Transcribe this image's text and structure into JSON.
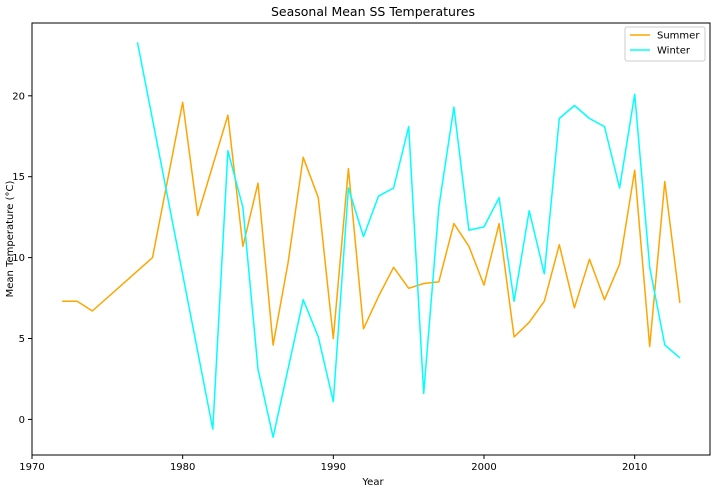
{
  "chart_data": {
    "type": "line",
    "title": "Seasonal Mean SS Temperatures",
    "xlabel": "Year",
    "ylabel": "Mean Temperature (°C)",
    "xlim": [
      1970,
      2015
    ],
    "ylim": [
      -2.2,
      24.5
    ],
    "xticks": [
      1970,
      1980,
      1990,
      2000,
      2010
    ],
    "yticks": [
      0,
      5,
      10,
      15,
      20
    ],
    "grid": false,
    "legend_position": "top-right",
    "series": [
      {
        "name": "Summer",
        "color": "#FFA500",
        "x": [
          1972,
          1973,
          1974,
          1978,
          1980,
          1981,
          1983,
          1984,
          1985,
          1986,
          1987,
          1988,
          1989,
          1990,
          1991,
          1992,
          1993,
          1994,
          1995,
          1996,
          1997,
          1998,
          1999,
          2000,
          2001,
          2002,
          2003,
          2004,
          2005,
          2006,
          2007,
          2008,
          2009,
          2010,
          2011,
          2012,
          2013
        ],
        "y": [
          7.3,
          7.3,
          6.7,
          10.0,
          19.6,
          12.6,
          18.8,
          10.7,
          14.6,
          4.6,
          9.7,
          16.2,
          13.7,
          5.0,
          15.5,
          5.6,
          7.6,
          9.4,
          8.1,
          8.4,
          8.5,
          12.1,
          10.7,
          8.3,
          12.1,
          5.1,
          6.0,
          7.3,
          10.8,
          6.9,
          9.9,
          7.4,
          9.6,
          15.4,
          4.5,
          14.7,
          7.2
        ]
      },
      {
        "name": "Winter",
        "color": "#00FFFF",
        "x": [
          1977,
          1982,
          1983,
          1984,
          1985,
          1986,
          1988,
          1989,
          1990,
          1991,
          1992,
          1993,
          1994,
          1995,
          1996,
          1997,
          1998,
          1999,
          2000,
          2001,
          2002,
          2003,
          2004,
          2005,
          2006,
          2007,
          2008,
          2009,
          2010,
          2011,
          2012,
          2013
        ],
        "y": [
          23.3,
          -0.6,
          16.6,
          13.1,
          3.1,
          -1.1,
          7.4,
          5.1,
          1.1,
          14.3,
          11.3,
          13.8,
          14.3,
          18.1,
          1.6,
          13.1,
          19.3,
          11.7,
          11.9,
          13.7,
          7.3,
          12.9,
          9.0,
          18.6,
          19.4,
          18.6,
          18.1,
          14.3,
          20.1,
          9.4,
          4.6,
          3.8
        ]
      }
    ]
  }
}
